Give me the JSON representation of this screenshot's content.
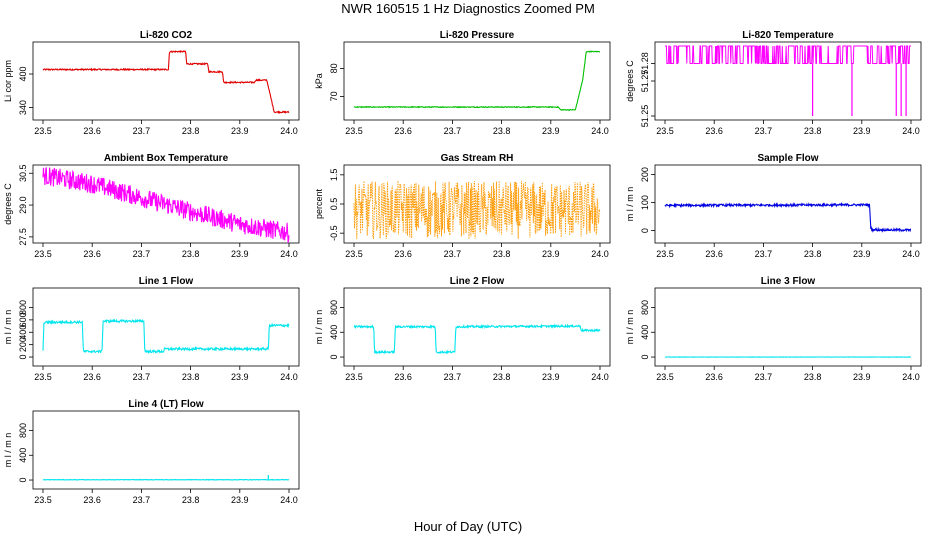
{
  "page": {
    "title": "NWR  160515  1 Hz Diagnostics Zoomed PM",
    "xlabel": "Hour of Day (UTC)"
  },
  "colors": {
    "red": "#e00000",
    "green": "#00c000",
    "magenta": "#ff00ff",
    "orange": "#ff9900",
    "blue": "#0000e0",
    "cyan": "#00e5ee"
  },
  "chart_data": [
    {
      "type": "line",
      "title": "Li-820 CO2",
      "ylabel": "Li cor ppm",
      "xlim": [
        23.5,
        24.0
      ],
      "ylim": [
        325,
        450
      ],
      "xticks": [
        "23.5",
        "23.6",
        "23.7",
        "23.8",
        "23.9",
        "24.0"
      ],
      "yticks": [
        {
          "v": 340,
          "label": "340"
        },
        {
          "v": 400,
          "label": "400"
        }
      ],
      "color": "red",
      "noise": 1.2,
      "series": [
        [
          23.5,
          408
        ],
        [
          23.755,
          408
        ],
        [
          23.757,
          440
        ],
        [
          23.79,
          440
        ],
        [
          23.792,
          418
        ],
        [
          23.835,
          418
        ],
        [
          23.837,
          404
        ],
        [
          23.865,
          404
        ],
        [
          23.867,
          385
        ],
        [
          23.93,
          385
        ],
        [
          23.932,
          389
        ],
        [
          23.955,
          389
        ],
        [
          23.962,
          362
        ],
        [
          23.97,
          332
        ],
        [
          24.0,
          332
        ]
      ]
    },
    {
      "type": "line",
      "title": "Li-820 Pressure",
      "ylabel": "kPa",
      "xlim": [
        23.5,
        24.0
      ],
      "ylim": [
        63,
        88
      ],
      "xticks": [
        "23.5",
        "23.6",
        "23.7",
        "23.8",
        "23.9",
        "24.0"
      ],
      "yticks": [
        {
          "v": 70,
          "label": "70"
        },
        {
          "v": 80,
          "label": "80"
        }
      ],
      "color": "green",
      "noise": 0.15,
      "series": [
        [
          23.5,
          66.2
        ],
        [
          23.915,
          66.2
        ],
        [
          23.92,
          65.2
        ],
        [
          23.95,
          65.2
        ],
        [
          23.965,
          76
        ],
        [
          23.972,
          86
        ],
        [
          24.0,
          86
        ]
      ]
    },
    {
      "type": "line",
      "title": "Li-820 Temperature",
      "ylabel": "degrees C",
      "xlim": [
        23.5,
        24.0
      ],
      "ylim": [
        51.25,
        51.29
      ],
      "xticks": [
        "23.5",
        "23.6",
        "23.7",
        "23.8",
        "23.9",
        "24.0"
      ],
      "yticks": [
        {
          "v": 51.25,
          "label": "51.25"
        },
        {
          "v": 51.27,
          "label": "51.27"
        },
        {
          "v": 51.28,
          "label": "51.28"
        }
      ],
      "color": "magenta",
      "mode": "toggle",
      "low": 51.28,
      "high": 51.29,
      "dips": [
        23.8,
        23.88,
        23.97,
        23.98,
        23.99
      ],
      "dip_value": 51.25,
      "series": [
        [
          23.5,
          51.28
        ],
        [
          24.0,
          51.28
        ]
      ]
    },
    {
      "type": "line",
      "title": "Ambient Box Temperature",
      "ylabel": "degrees C",
      "xlim": [
        23.5,
        24.0
      ],
      "ylim": [
        27.4,
        30.7
      ],
      "xticks": [
        "23.5",
        "23.6",
        "23.7",
        "23.8",
        "23.9",
        "24.0"
      ],
      "yticks": [
        {
          "v": 27.5,
          "label": "27.5"
        },
        {
          "v": 29.0,
          "label": "29.0"
        },
        {
          "v": 30.5,
          "label": "30.5"
        }
      ],
      "color": "magenta",
      "noise": 0.45,
      "series": [
        [
          23.5,
          30.4
        ],
        [
          23.6,
          30.0
        ],
        [
          23.7,
          29.35
        ],
        [
          23.8,
          28.7
        ],
        [
          23.9,
          28.1
        ],
        [
          24.0,
          27.7
        ]
      ]
    },
    {
      "type": "line",
      "title": "Gas Stream RH",
      "ylabel": "percent",
      "xlim": [
        23.5,
        24.0
      ],
      "ylim": [
        -0.7,
        1.7
      ],
      "xticks": [
        "23.5",
        "23.6",
        "23.7",
        "23.8",
        "23.9",
        "24.0"
      ],
      "yticks": [
        {
          "v": -0.5,
          "label": "-0.5"
        },
        {
          "v": 0.5,
          "label": "0.5"
        },
        {
          "v": 1.5,
          "label": "1.5"
        }
      ],
      "color": "orange",
      "noise": 1.0,
      "dotted": true,
      "series": [
        [
          23.5,
          0.3
        ],
        [
          24.0,
          0.3
        ]
      ]
    },
    {
      "type": "line",
      "title": "Sample Flow",
      "ylabel": "m l / m n",
      "xlim": [
        23.5,
        24.0
      ],
      "ylim": [
        -30,
        220
      ],
      "xticks": [
        "23.5",
        "23.6",
        "23.7",
        "23.8",
        "23.9",
        "24.0"
      ],
      "yticks": [
        {
          "v": 0,
          "label": "0"
        },
        {
          "v": 100,
          "label": "100"
        },
        {
          "v": 200,
          "label": "200"
        }
      ],
      "color": "blue",
      "noise": 4,
      "series": [
        [
          23.5,
          90
        ],
        [
          23.916,
          92
        ],
        [
          23.918,
          10
        ],
        [
          23.922,
          3
        ],
        [
          24.0,
          2
        ]
      ]
    },
    {
      "type": "line",
      "title": "Line 1 Flow",
      "ylabel": "m l / m n",
      "xlim": [
        23.5,
        24.0
      ],
      "ylim": [
        -80,
        1050
      ],
      "xticks": [
        "23.5",
        "23.6",
        "23.7",
        "23.8",
        "23.9",
        "24.0"
      ],
      "yticks": [
        {
          "v": 0,
          "label": "0"
        },
        {
          "v": 200,
          "label": "200"
        },
        {
          "v": 400,
          "label": "400"
        },
        {
          "v": 600,
          "label": "600"
        },
        {
          "v": 800,
          "label": "800"
        }
      ],
      "color": "cyan",
      "noise": 18,
      "series": [
        [
          23.5,
          110
        ],
        [
          23.502,
          560
        ],
        [
          23.58,
          565
        ],
        [
          23.582,
          90
        ],
        [
          23.62,
          90
        ],
        [
          23.622,
          580
        ],
        [
          23.705,
          580
        ],
        [
          23.707,
          90
        ],
        [
          23.745,
          90
        ],
        [
          23.747,
          130
        ],
        [
          23.958,
          130
        ],
        [
          23.96,
          510
        ],
        [
          24.0,
          510
        ]
      ]
    },
    {
      "type": "line",
      "title": "Line 2 Flow",
      "ylabel": "m l / m n",
      "xlim": [
        23.5,
        24.0
      ],
      "ylim": [
        -80,
        1050
      ],
      "xticks": [
        "23.5",
        "23.6",
        "23.7",
        "23.8",
        "23.9",
        "24.0"
      ],
      "yticks": [
        {
          "v": 0,
          "label": "0"
        },
        {
          "v": 400,
          "label": "400"
        },
        {
          "v": 800,
          "label": "800"
        }
      ],
      "color": "cyan",
      "noise": 15,
      "series": [
        [
          23.5,
          490
        ],
        [
          23.54,
          490
        ],
        [
          23.542,
          80
        ],
        [
          23.582,
          80
        ],
        [
          23.584,
          490
        ],
        [
          23.665,
          490
        ],
        [
          23.667,
          80
        ],
        [
          23.705,
          80
        ],
        [
          23.707,
          490
        ],
        [
          23.96,
          500
        ],
        [
          23.962,
          430
        ],
        [
          24.0,
          430
        ]
      ]
    },
    {
      "type": "line",
      "title": "Line 3 Flow",
      "ylabel": "m l / m n",
      "xlim": [
        23.5,
        24.0
      ],
      "ylim": [
        -80,
        1050
      ],
      "xticks": [
        "23.5",
        "23.6",
        "23.7",
        "23.8",
        "23.9",
        "24.0"
      ],
      "yticks": [
        {
          "v": 0,
          "label": "0"
        },
        {
          "v": 400,
          "label": "400"
        },
        {
          "v": 800,
          "label": "800"
        }
      ],
      "color": "cyan",
      "noise": 3,
      "series": [
        [
          23.5,
          0
        ],
        [
          24.0,
          0
        ]
      ]
    },
    {
      "type": "line",
      "title": "Line 4 (LT) Flow",
      "ylabel": "m l / m n",
      "xlim": [
        23.5,
        24.0
      ],
      "ylim": [
        -80,
        1050
      ],
      "xticks": [
        "23.5",
        "23.6",
        "23.7",
        "23.8",
        "23.9",
        "24.0"
      ],
      "yticks": [
        {
          "v": 0,
          "label": "0"
        },
        {
          "v": 400,
          "label": "400"
        },
        {
          "v": 800,
          "label": "800"
        }
      ],
      "color": "cyan",
      "noise": 4,
      "spike": [
        23.958,
        80
      ],
      "series": [
        [
          23.5,
          5
        ],
        [
          24.0,
          5
        ]
      ]
    }
  ]
}
